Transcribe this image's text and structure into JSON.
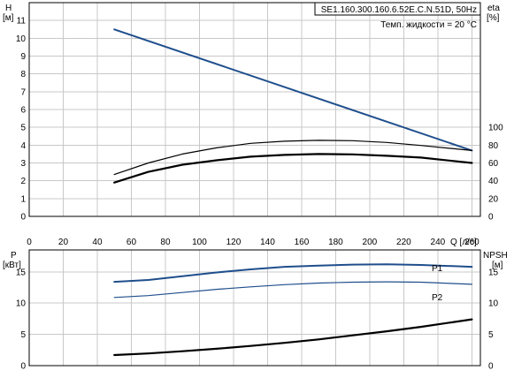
{
  "chart_data": [
    {
      "type": "line",
      "title": "SE1.160.300.160.6.52E.C.N.51D, 50Hz",
      "annotation": "Темп. жидкости = 20 °C",
      "xlabel": "Q [л/с]",
      "ylabel_left": "H",
      "ylabel_left_unit": "[м]",
      "ylabel_right": "eta",
      "ylabel_right_unit": "[%]",
      "xlim": [
        0,
        265
      ],
      "ylim_left": [
        0,
        12
      ],
      "ylim_right": [
        0,
        100
      ],
      "x_ticks": [
        0,
        20,
        40,
        60,
        80,
        100,
        120,
        140,
        160,
        180,
        200,
        220,
        240,
        260
      ],
      "y_ticks_left": [
        0,
        1,
        2,
        3,
        4,
        5,
        6,
        7,
        8,
        9,
        10,
        11
      ],
      "y_ticks_right": [
        0,
        20,
        40,
        60,
        80,
        100
      ],
      "grid": true,
      "series": [
        {
          "axis": "left",
          "color": "#1f4e8c",
          "x": [
            50,
            260
          ],
          "y": [
            10.5,
            3.7
          ]
        },
        {
          "axis": "left",
          "color": "#000000",
          "x": [
            50,
            70,
            90,
            110,
            130,
            150,
            170,
            190,
            210,
            230,
            260
          ],
          "y": [
            2.35,
            3.0,
            3.5,
            3.85,
            4.1,
            4.22,
            4.27,
            4.25,
            4.15,
            3.98,
            3.7
          ]
        },
        {
          "axis": "left",
          "color": "#000000",
          "x": [
            50,
            70,
            90,
            110,
            130,
            150,
            170,
            190,
            210,
            230,
            260
          ],
          "y": [
            1.9,
            2.5,
            2.9,
            3.15,
            3.35,
            3.45,
            3.5,
            3.48,
            3.4,
            3.3,
            3.0
          ]
        }
      ]
    },
    {
      "type": "line",
      "xlim": [
        0,
        265
      ],
      "ylabel_left": "P",
      "ylabel_left_unit": "[кВт]",
      "ylabel_right": "NPSH",
      "ylabel_right_unit": "[м]",
      "ylim_left": [
        0,
        18.5
      ],
      "ylim_right": [
        0,
        18.5
      ],
      "y_ticks_left": [
        0,
        5,
        10,
        15
      ],
      "y_ticks_right": [
        0,
        5,
        10,
        15
      ],
      "grid": true,
      "series": [
        {
          "name": "P1",
          "axis": "left",
          "color": "#1f4e8c",
          "x": [
            50,
            70,
            90,
            110,
            130,
            150,
            170,
            190,
            210,
            230,
            260
          ],
          "y": [
            13.4,
            13.7,
            14.3,
            14.9,
            15.4,
            15.8,
            16.0,
            16.15,
            16.2,
            16.1,
            15.8
          ]
        },
        {
          "name": "P2",
          "axis": "left",
          "color": "#1f4e8c",
          "x": [
            50,
            70,
            90,
            110,
            130,
            150,
            170,
            190,
            210,
            230,
            260
          ],
          "y": [
            10.9,
            11.2,
            11.7,
            12.2,
            12.6,
            12.95,
            13.2,
            13.35,
            13.4,
            13.35,
            13.0
          ]
        },
        {
          "axis": "right",
          "color": "#000000",
          "x": [
            50,
            70,
            90,
            110,
            130,
            150,
            170,
            190,
            210,
            230,
            260
          ],
          "y": [
            1.7,
            1.95,
            2.3,
            2.7,
            3.15,
            3.65,
            4.2,
            4.85,
            5.5,
            6.2,
            7.4
          ]
        }
      ]
    }
  ]
}
